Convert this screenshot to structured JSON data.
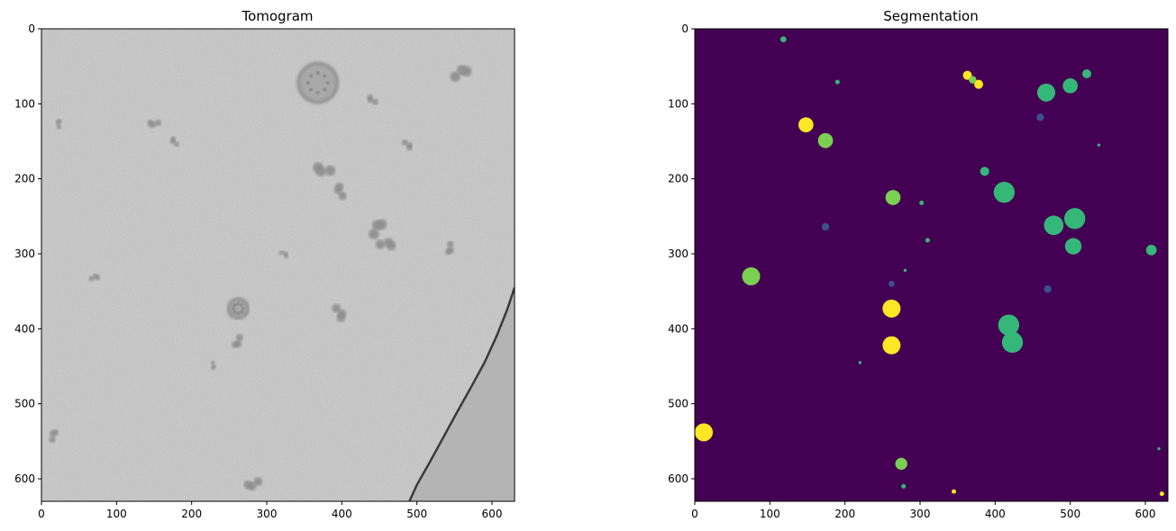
{
  "chart_data": [
    {
      "type": "heatmap",
      "title": "Tomogram",
      "colormap": "gray",
      "xlim": [
        0,
        630
      ],
      "ylim": [
        630,
        0
      ],
      "xticks": [
        0,
        100,
        200,
        300,
        400,
        500,
        600
      ],
      "yticks": [
        0,
        100,
        200,
        300,
        400,
        500,
        600
      ],
      "background_color": "#c8c8c8",
      "features": [
        {
          "kind": "vesicle",
          "x": 368,
          "y": 72,
          "r": 26
        },
        {
          "kind": "vesicle",
          "x": 262,
          "y": 373,
          "r": 13
        },
        {
          "kind": "cluster",
          "x": 372,
          "y": 190,
          "r": 18
        },
        {
          "kind": "cluster",
          "x": 395,
          "y": 215,
          "r": 14
        },
        {
          "kind": "cluster",
          "x": 447,
          "y": 262,
          "r": 18
        },
        {
          "kind": "cluster",
          "x": 462,
          "y": 285,
          "r": 16
        },
        {
          "kind": "cluster",
          "x": 400,
          "y": 380,
          "r": 15
        },
        {
          "kind": "cluster",
          "x": 262,
          "y": 420,
          "r": 12
        },
        {
          "kind": "cluster",
          "x": 148,
          "y": 128,
          "r": 11
        },
        {
          "kind": "cluster",
          "x": 175,
          "y": 150,
          "r": 9
        },
        {
          "kind": "cluster",
          "x": 15,
          "y": 540,
          "r": 11
        },
        {
          "kind": "cluster",
          "x": 72,
          "y": 330,
          "r": 9
        },
        {
          "kind": "cluster",
          "x": 490,
          "y": 155,
          "r": 10
        },
        {
          "kind": "cluster",
          "x": 545,
          "y": 295,
          "r": 11
        },
        {
          "kind": "cluster",
          "x": 280,
          "y": 610,
          "r": 15
        },
        {
          "kind": "cluster",
          "x": 438,
          "y": 95,
          "r": 10
        },
        {
          "kind": "cluster",
          "x": 22,
          "y": 125,
          "r": 8
        },
        {
          "kind": "cluster",
          "x": 560,
          "y": 55,
          "r": 18
        },
        {
          "kind": "cluster",
          "x": 325,
          "y": 300,
          "r": 8
        },
        {
          "kind": "cluster",
          "x": 230,
          "y": 450,
          "r": 7
        }
      ],
      "membrane_edge": [
        [
          630,
          345
        ],
        [
          620,
          375
        ],
        [
          606,
          410
        ],
        [
          590,
          445
        ],
        [
          572,
          478
        ],
        [
          553,
          512
        ],
        [
          535,
          545
        ],
        [
          517,
          578
        ],
        [
          500,
          608
        ],
        [
          490,
          630
        ]
      ]
    },
    {
      "type": "heatmap",
      "title": "Segmentation",
      "colormap": "viridis",
      "xlim": [
        0,
        630
      ],
      "ylim": [
        630,
        0
      ],
      "xticks": [
        0,
        100,
        200,
        300,
        400,
        500,
        600
      ],
      "yticks": [
        0,
        100,
        200,
        300,
        400,
        500,
        600
      ],
      "background_color": "#440154",
      "segments": [
        {
          "x": 148,
          "y": 128,
          "r": 10,
          "color": "#fde725"
        },
        {
          "x": 262,
          "y": 373,
          "r": 12,
          "color": "#fde725"
        },
        {
          "x": 262,
          "y": 422,
          "r": 12,
          "color": "#fde725"
        },
        {
          "x": 12,
          "y": 538,
          "r": 12,
          "color": "#fde725"
        },
        {
          "x": 363,
          "y": 62,
          "r": 6,
          "color": "#fde725"
        },
        {
          "x": 378,
          "y": 74,
          "r": 6,
          "color": "#fde725"
        },
        {
          "x": 174,
          "y": 149,
          "r": 10,
          "color": "#7ad151"
        },
        {
          "x": 264,
          "y": 225,
          "r": 10,
          "color": "#7ad151"
        },
        {
          "x": 75,
          "y": 330,
          "r": 12,
          "color": "#7ad151"
        },
        {
          "x": 275,
          "y": 580,
          "r": 8,
          "color": "#7ad151"
        },
        {
          "x": 370,
          "y": 68,
          "r": 5,
          "color": "#7ad151"
        },
        {
          "x": 468,
          "y": 85,
          "r": 12,
          "color": "#35b779"
        },
        {
          "x": 500,
          "y": 76,
          "r": 10,
          "color": "#35b779"
        },
        {
          "x": 522,
          "y": 60,
          "r": 6,
          "color": "#35b779"
        },
        {
          "x": 412,
          "y": 218,
          "r": 14,
          "color": "#35b779"
        },
        {
          "x": 478,
          "y": 262,
          "r": 13,
          "color": "#35b779"
        },
        {
          "x": 506,
          "y": 253,
          "r": 14,
          "color": "#35b779"
        },
        {
          "x": 504,
          "y": 290,
          "r": 11,
          "color": "#35b779"
        },
        {
          "x": 418,
          "y": 395,
          "r": 14,
          "color": "#35b779"
        },
        {
          "x": 423,
          "y": 418,
          "r": 14,
          "color": "#35b779"
        },
        {
          "x": 386,
          "y": 190,
          "r": 6,
          "color": "#35b779"
        },
        {
          "x": 608,
          "y": 295,
          "r": 7,
          "color": "#35b779"
        },
        {
          "x": 118,
          "y": 14,
          "r": 4,
          "color": "#35b779"
        },
        {
          "x": 460,
          "y": 118,
          "r": 5,
          "color": "#3b528b"
        },
        {
          "x": 174,
          "y": 264,
          "r": 5,
          "color": "#3b528b"
        },
        {
          "x": 470,
          "y": 347,
          "r": 5,
          "color": "#3b528b"
        },
        {
          "x": 262,
          "y": 340,
          "r": 4,
          "color": "#3b528b"
        },
        {
          "x": 190,
          "y": 71,
          "r": 3,
          "color": "#35b779"
        },
        {
          "x": 310,
          "y": 282,
          "r": 3,
          "color": "#35b779"
        },
        {
          "x": 302,
          "y": 232,
          "r": 3,
          "color": "#35b779"
        },
        {
          "x": 220,
          "y": 445,
          "r": 2,
          "color": "#35b779"
        },
        {
          "x": 280,
          "y": 322,
          "r": 2,
          "color": "#35b779"
        },
        {
          "x": 345,
          "y": 617,
          "r": 3,
          "color": "#fde725"
        },
        {
          "x": 278,
          "y": 610,
          "r": 3,
          "color": "#35b779"
        },
        {
          "x": 538,
          "y": 155,
          "r": 2,
          "color": "#35b779"
        },
        {
          "x": 622,
          "y": 620,
          "r": 3,
          "color": "#fde725"
        },
        {
          "x": 618,
          "y": 560,
          "r": 2,
          "color": "#35b779"
        }
      ]
    }
  ]
}
